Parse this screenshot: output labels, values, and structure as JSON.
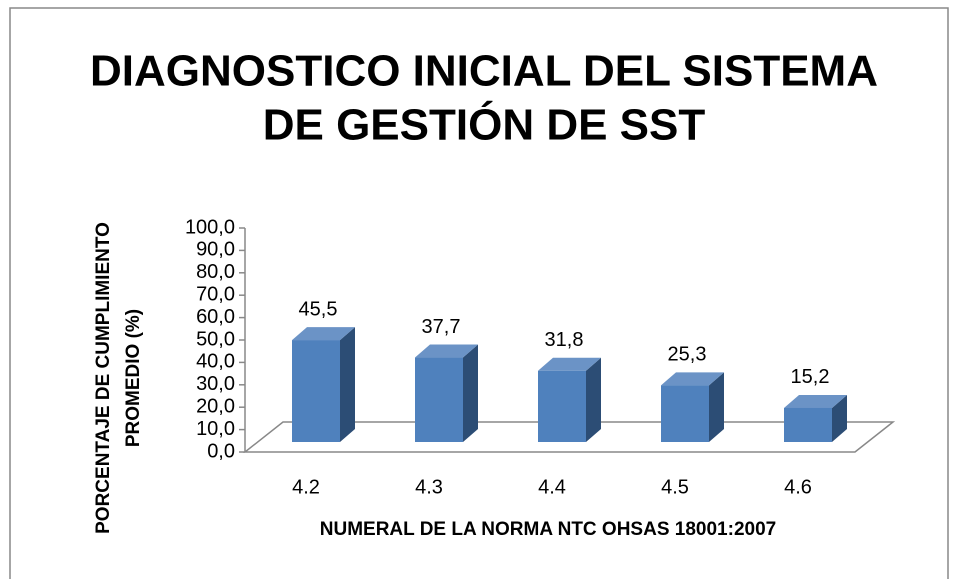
{
  "chart_data": {
    "type": "bar3d",
    "title": [
      "DIAGNOSTICO INICIAL DEL SISTEMA",
      "DE GESTIÓN DE SST"
    ],
    "y_label": [
      "PORCENTAJE DE CUMPLIMIENTO",
      "PROMEDIO (%)"
    ],
    "x_label": "NUMERAL DE LA NORMA NTC OHSAS 18001:2007",
    "categories": [
      "4.2",
      "4.3",
      "4.4",
      "4.5",
      "4.6"
    ],
    "values": [
      45.5,
      37.7,
      31.8,
      25.3,
      15.2
    ],
    "value_labels": [
      "45,5",
      "37,7",
      "31,8",
      "25,3",
      "15,2"
    ],
    "color": "#4f81bd",
    "ylim": [
      0,
      100
    ],
    "yticks": [
      {
        "value": 0,
        "label": "0,0"
      },
      {
        "value": 10,
        "label": "10,0"
      },
      {
        "value": 20,
        "label": "20,0"
      },
      {
        "value": 30,
        "label": "30,0"
      },
      {
        "value": 40,
        "label": "40,0"
      },
      {
        "value": 50,
        "label": "50,0"
      },
      {
        "value": 60,
        "label": "60,0"
      },
      {
        "value": 70,
        "label": "70,0"
      },
      {
        "value": 80,
        "label": "80,0"
      },
      {
        "value": 90,
        "label": "90,0"
      },
      {
        "value": 100,
        "label": "100,0"
      }
    ]
  }
}
